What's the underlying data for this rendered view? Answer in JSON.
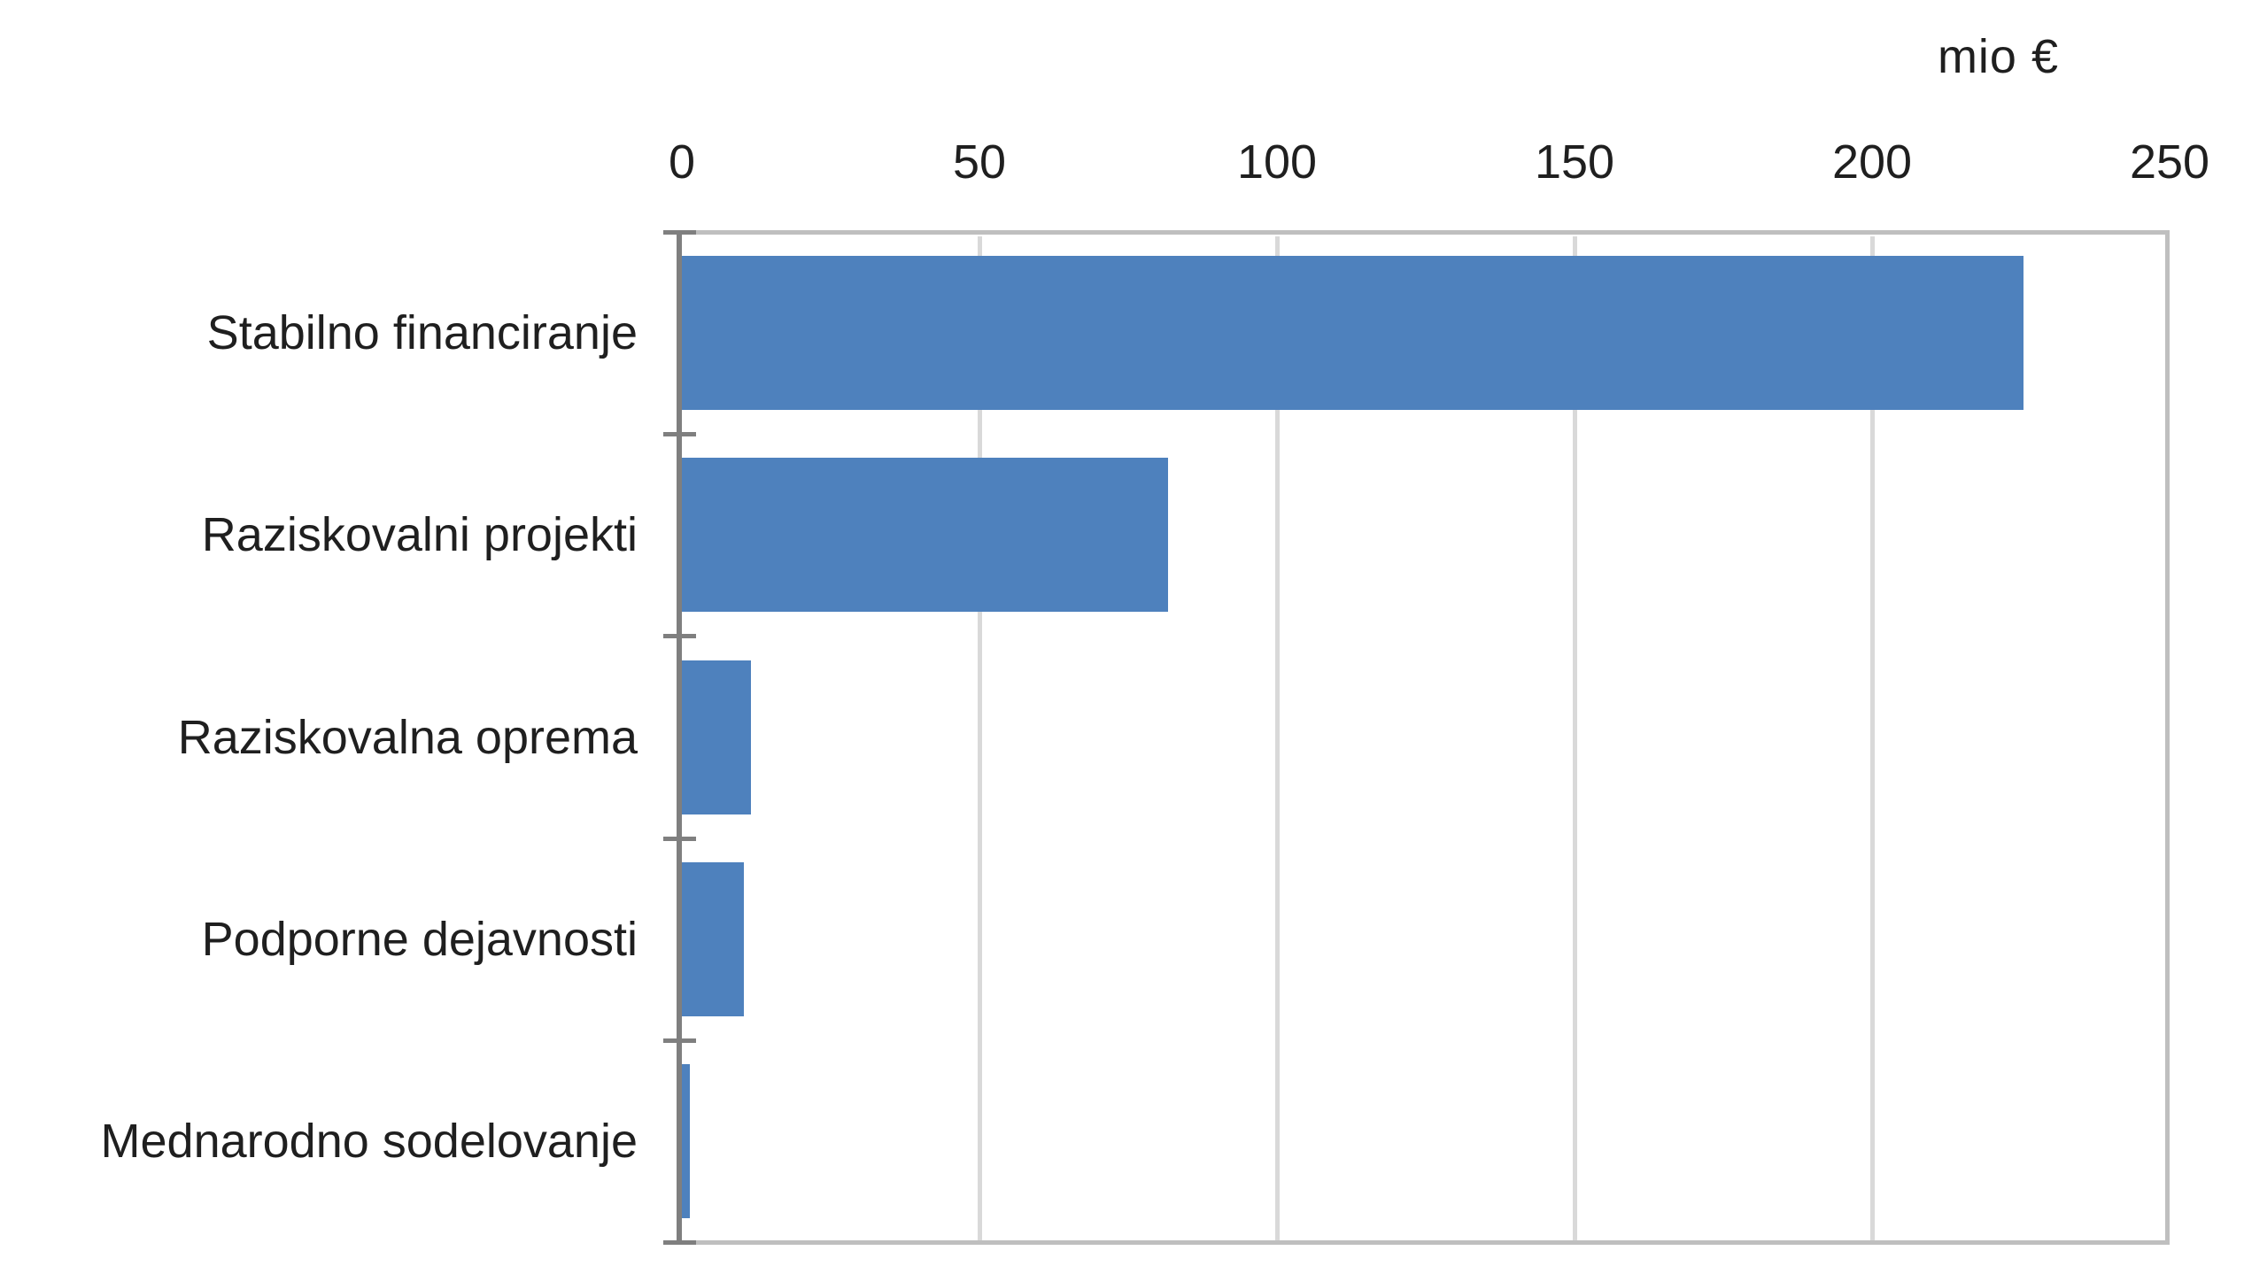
{
  "unit_label": "mio €",
  "chart_data": {
    "type": "bar",
    "orientation": "horizontal",
    "title": "",
    "unit": "mio €",
    "categories": [
      "Stabilno financiranje",
      "Raziskovalni projekti",
      "Raziskovalna oprema",
      "Podporne dejavnosti",
      "Mednarodno sodelovanje"
    ],
    "values": [
      225.5,
      81.7,
      11.6,
      10.4,
      1.4
    ],
    "xlabel": "mio €",
    "ylabel": "",
    "xlim": [
      0,
      250
    ],
    "xticks": [
      0,
      50,
      100,
      150,
      200,
      250
    ],
    "grid": true,
    "legend_position": "none",
    "colors": {
      "bar": "#4E81BD",
      "gridline": "#D9D9D9",
      "plot_border": "#BFBFBF",
      "category_axis": "#7F7F7F",
      "text": "#1f1f1f",
      "background": "#FFFFFF"
    }
  }
}
